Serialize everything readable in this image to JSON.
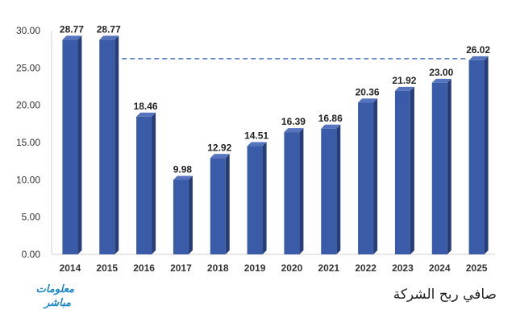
{
  "chart_data": {
    "type": "bar",
    "title": "صافي ربح الشركة",
    "categories": [
      "2014",
      "2015",
      "2016",
      "2017",
      "2018",
      "2019",
      "2020",
      "2021",
      "2022",
      "2023",
      "2024",
      "2025"
    ],
    "values": [
      28.77,
      28.77,
      18.46,
      9.98,
      12.92,
      14.51,
      16.39,
      16.86,
      20.36,
      21.92,
      23.0,
      26.02
    ],
    "value_labels": [
      "28.77",
      "28.77",
      "18.46",
      "9.98",
      "12.92",
      "14.51",
      "16.39",
      "16.86",
      "20.36",
      "21.92",
      "23.00",
      "26.02"
    ],
    "ylim": [
      0,
      30
    ],
    "yticks": [
      "0.00",
      "5.00",
      "10.00",
      "15.00",
      "20.00",
      "25.00",
      "30.00"
    ],
    "reference_line": {
      "value": 26.02,
      "from_category": "2015",
      "to_category": "2025",
      "style": "dashed"
    },
    "grid": false,
    "colors": {
      "bar_front": "#3a5ba8",
      "bar_side": "#263d78",
      "bar_top": "#5574bd",
      "ref_line": "#4a72c4"
    }
  },
  "logo": {
    "line1": "معلومات",
    "line2": "مباشر"
  }
}
